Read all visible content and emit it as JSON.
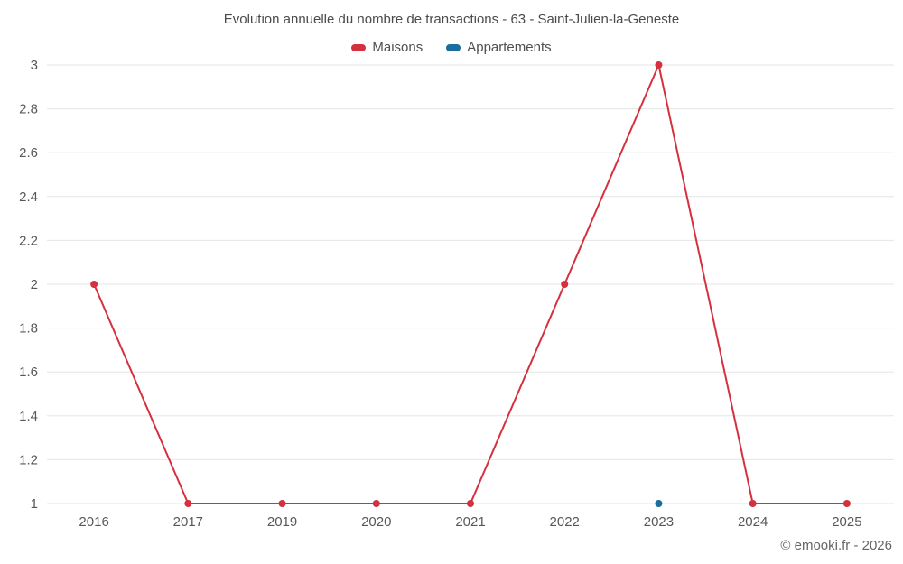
{
  "chart_data": {
    "type": "line",
    "title": "Evolution annuelle du nombre de transactions - 63 - Saint-Julien-la-Geneste",
    "categories": [
      "2016",
      "2017",
      "2019",
      "2020",
      "2021",
      "2022",
      "2023",
      "2024",
      "2025"
    ],
    "series": [
      {
        "name": "Maisons",
        "color": "#d5303e",
        "values": [
          2,
          1,
          1,
          1,
          1,
          2,
          3,
          1,
          1
        ]
      },
      {
        "name": "Appartements",
        "color": "#1a6d9c",
        "values": [
          null,
          null,
          null,
          null,
          null,
          null,
          1,
          null,
          null
        ]
      }
    ],
    "ylim": [
      1,
      3
    ],
    "yticks": [
      1,
      1.2,
      1.4,
      1.6,
      1.8,
      2,
      2.2,
      2.4,
      2.6,
      2.8,
      3
    ],
    "grid": true,
    "grid_color": "#e6e6e6",
    "legend_position": "top"
  },
  "footer": {
    "copyright": "© emooki.fr - 2026"
  }
}
